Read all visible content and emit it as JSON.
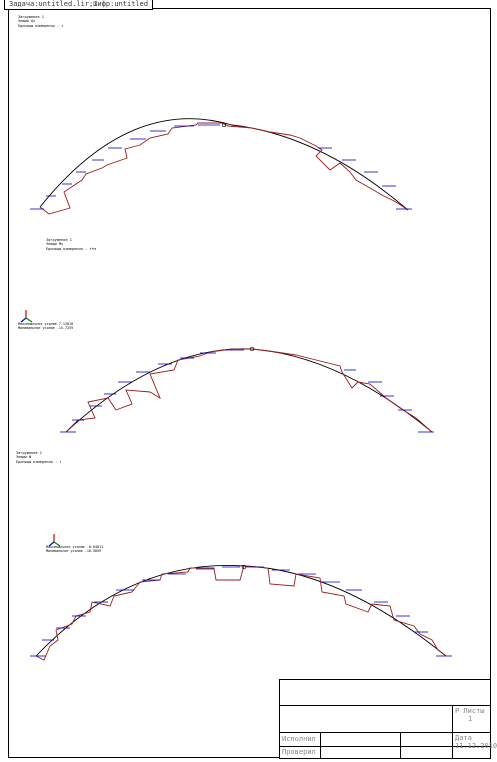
{
  "window": {
    "title": "Задача:untitled.lir;Шифр:untitled"
  },
  "cases": [
    {
      "header_lines": [
        "Загружение 1",
        "Эпюры Qz",
        "Единицы измерения - т"
      ]
    },
    {
      "header_lines": [
        "Загружение 1",
        "Эпюры My",
        "Единицы измерения - т*м"
      ],
      "extremes": [
        "Максимальное усилие 7.12618",
        "Минимальное усилие -15.7259"
      ]
    },
    {
      "header_lines": [
        "Загружение 1",
        "Эпюры N",
        "Единицы измерения - т"
      ],
      "extremes": [
        "Максимальное усилие -0.64811",
        "Минимальное усилие -16.3859"
      ]
    }
  ],
  "stamp": {
    "sheet_label": "Р Листы",
    "sheet_value": "1",
    "date_label": "Дата",
    "date_value": "11.12.2010",
    "executed_label": "Исполнил",
    "checked_label": "Проверил"
  },
  "colors": {
    "frame": "#000000",
    "beam": "#000000",
    "diagram": "#9b1c1c",
    "load_arrow": "#0000cc",
    "axis_red": "#cc0000",
    "axis_green": "#008800"
  }
}
